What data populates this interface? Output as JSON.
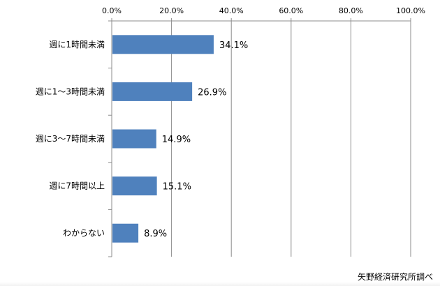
{
  "chart_data": {
    "type": "bar",
    "orientation": "horizontal",
    "categories": [
      "週に1時間未満",
      "週に1～3時間未満",
      "週に3～7時間未満",
      "週に7時間以上",
      "わからない"
    ],
    "values": [
      34.1,
      26.9,
      14.9,
      15.1,
      8.9
    ],
    "value_labels": [
      "34.1%",
      "26.9%",
      "14.9%",
      "15.1%",
      "8.9%"
    ],
    "xlim": [
      0,
      100
    ],
    "x_ticks": [
      0,
      20,
      40,
      60,
      80,
      100
    ],
    "x_tick_labels": [
      "0.0%",
      "20.0%",
      "40.0%",
      "60.0%",
      "80.0%",
      "100.0%"
    ],
    "x_axis_position": "top",
    "grid": true,
    "legend": false,
    "bar_color": "#4f81bd",
    "title": "",
    "xlabel": "",
    "ylabel": ""
  },
  "source_note": "矢野経済研究所調べ"
}
